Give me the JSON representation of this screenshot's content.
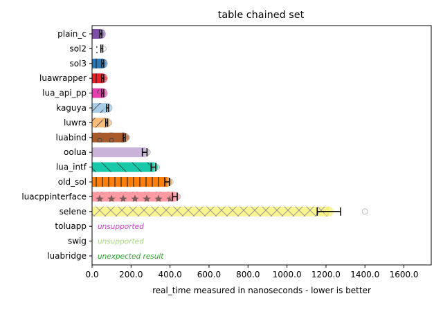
{
  "chart_data": {
    "type": "bar",
    "orientation": "horizontal",
    "title": "table chained set",
    "xlabel": "real_time measured in nanoseconds - lower is better",
    "ylabel": "",
    "xlim": [
      0,
      1740
    ],
    "xticks": [
      "0.0",
      "200.0",
      "400.0",
      "600.0",
      "800.0",
      "1000.0",
      "1200.0",
      "1400.0",
      "1600.0"
    ],
    "grid": false,
    "series": [
      {
        "category": "plain_c",
        "value": 45,
        "err": 5,
        "color": "#7f4fa6",
        "hatch": "none",
        "outlier": 52
      },
      {
        "category": "sol2",
        "value": 50,
        "err": 5,
        "color": "#ffffff",
        "hatch": "dots",
        "outlier": 58
      },
      {
        "category": "sol3",
        "value": 55,
        "err": 5,
        "color": "#2b78b5",
        "hatch": "vlines",
        "outlier": 62
      },
      {
        "category": "luawrapper",
        "value": 55,
        "err": 5,
        "color": "#e8222a",
        "hatch": "vlines",
        "outlier": 65
      },
      {
        "category": "lua_api_pp",
        "value": 55,
        "err": 5,
        "color": "#e83fb0",
        "hatch": "circles",
        "outlier": 62
      },
      {
        "category": "kaguya",
        "value": 80,
        "err": 5,
        "color": "#a8cde8",
        "hatch": "slash",
        "outlier": 88
      },
      {
        "category": "luwra",
        "value": 75,
        "err": 5,
        "color": "#fbbb78",
        "hatch": "slash",
        "outlier": 88
      },
      {
        "category": "luabind",
        "value": 165,
        "err": 5,
        "color": "#a85a2b",
        "hatch": "circles",
        "outlier": 180
      },
      {
        "category": "oolua",
        "value": 270,
        "err": 12,
        "color": "#c9b3d9",
        "hatch": "none",
        "outlier": 285
      },
      {
        "category": "lua_intf",
        "value": 315,
        "err": 12,
        "color": "#17c9a8",
        "hatch": "backslash",
        "outlier": 332
      },
      {
        "category": "old_sol",
        "value": 385,
        "err": 12,
        "color": "#ff7f0e",
        "hatch": "vlines",
        "outlier": 402
      },
      {
        "category": "luacppinterface",
        "value": 425,
        "err": 12,
        "color": "#ff9aa2",
        "hatch": "stars",
        "outlier": 440
      },
      {
        "category": "selene",
        "value": 1215,
        "err": 60,
        "color": "#f7f27a",
        "hatch": "cross",
        "outlier": 1400
      }
    ],
    "unsupported": [
      {
        "category": "toluapp",
        "note": "unsupported",
        "color": "#c53fc5"
      },
      {
        "category": "swig",
        "note": "unsupported",
        "color": "#a8d982"
      },
      {
        "category": "luabridge",
        "note": "unexpected result",
        "color": "#2ca02c"
      }
    ]
  }
}
